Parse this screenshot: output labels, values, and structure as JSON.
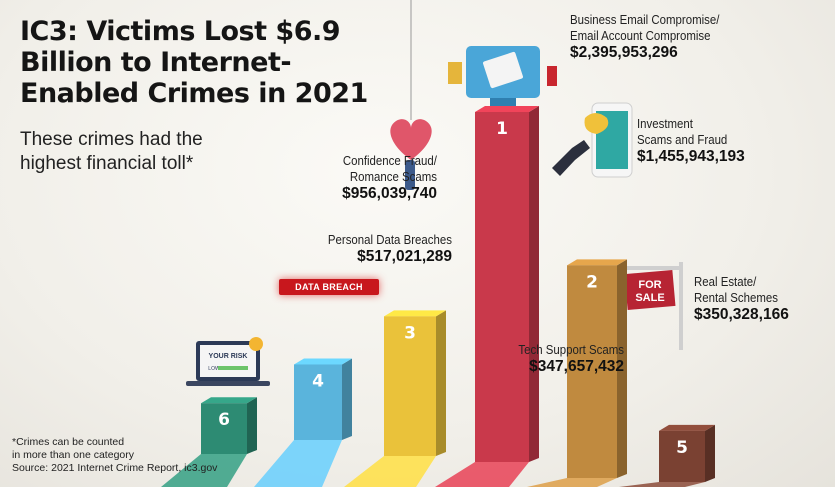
{
  "title": "IC3: Victims Lost $6.9 Billion to Internet-Enabled Crimes in 2021",
  "subtitle": "These crimes had the highest financial toll*",
  "footnote_line1": "*Crimes can be counted",
  "footnote_line2": "in more than one category",
  "source": "Source: 2021 Internet Crime Report, ic3.gov",
  "decor_text": {
    "data_breach": "DATA BREACH",
    "for_sale_1": "FOR",
    "for_sale_2": "SALE",
    "your_risk": "YOUR RISK",
    "low": "LOW"
  },
  "colors": {
    "rank1": "#c9394b",
    "rank2": "#c08a3f",
    "rank3": "#eac23a",
    "rank4": "#5ab4dc",
    "rank5": "#7a4132",
    "rank6": "#2d8b73"
  },
  "chart_data": {
    "type": "bar",
    "title": "IC3: Victims Lost $6.9 Billion to Internet-Enabled Crimes in 2021",
    "categories": [
      "Business Email Compromise/ Email Account Compromise",
      "Investment Scams and Fraud",
      "Confidence Fraud/ Romance Scams",
      "Personal Data Breaches",
      "Real Estate/ Rental Schemes",
      "Tech Support Scams"
    ],
    "values": [
      2395953296,
      1455943193,
      956039740,
      517021289,
      350328166,
      347657432
    ],
    "value_labels": [
      "$2,395,953,296",
      "$1,455,943,193",
      "$956,039,740",
      "$517,021,289",
      "$350,328,166",
      "$347,657,432"
    ],
    "ranks": [
      "1",
      "2",
      "3",
      "4",
      "5",
      "6"
    ],
    "label_lines": [
      [
        "Business Email Compromise/",
        "Email Account Compromise"
      ],
      [
        "Investment",
        "Scams and Fraud"
      ],
      [
        "Confidence Fraud/",
        "Romance Scams"
      ],
      [
        "Personal Data Breaches"
      ],
      [
        "Real Estate/",
        "Rental Schemes"
      ],
      [
        "Tech Support Scams"
      ]
    ]
  }
}
